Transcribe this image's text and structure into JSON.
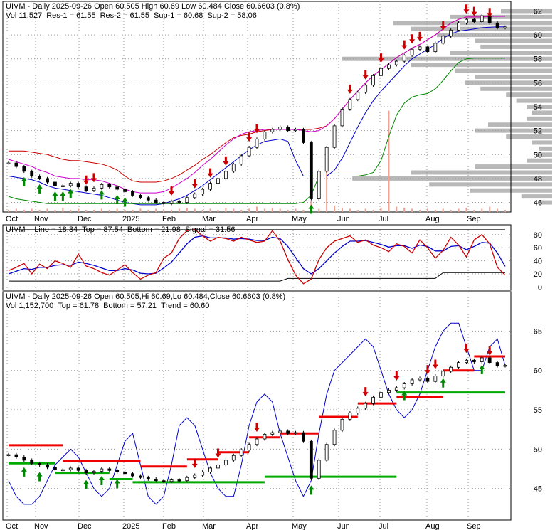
{
  "chart_data": [
    {
      "type": "candlestick",
      "header_line1": [
        {
          "text": "UIVM - Daily 2025-09-26 Open 60.505   High 60.69  Low 60.484   Close 60.6603 (0.8%)",
          "color": "#000000"
        }
      ],
      "header_line2": [
        {
          "text": "Vol 11,527",
          "color": "#000000"
        },
        {
          "text": "Res-1 = 61.55",
          "color": "#cc0000"
        },
        {
          "text": "Res-2 = 61.55",
          "color": "#cc0000"
        },
        {
          "text": "Sup-1 = 60.68",
          "color": "#0000cc"
        },
        {
          "text": "Sup-2 = 58.06",
          "color": "#008800"
        }
      ],
      "x_labels": [
        "Oct",
        "Nov",
        "Dec",
        "2025",
        "Feb",
        "Mar",
        "Apr",
        "May",
        "Jun",
        "Jul",
        "Aug",
        "Sep"
      ],
      "y_ticks": [
        46,
        48,
        50,
        52,
        54,
        56,
        58,
        60,
        62
      ],
      "ylim": [
        45.2,
        62.8
      ],
      "close": [
        49.3,
        49.0,
        48.6,
        48.2,
        48.0,
        47.7,
        47.4,
        47.4,
        47.6,
        47.3,
        47.0,
        47.2,
        47.5,
        47.3,
        47.1,
        46.9,
        46.6,
        46.4,
        46.2,
        46.0,
        45.9,
        46.1,
        46.0,
        46.4,
        46.7,
        47.1,
        47.6,
        48.0,
        48.6,
        49.2,
        49.9,
        50.6,
        51.3,
        51.9,
        52.1,
        52.3,
        52.0,
        52.1,
        51.0,
        46.3,
        48.6,
        50.6,
        52.4,
        53.8,
        54.6,
        55.2,
        55.8,
        56.6,
        57.2,
        57.5,
        57.8,
        58.3,
        58.8,
        59.0,
        58.6,
        59.3,
        59.9,
        60.4,
        61.0,
        61.3,
        61.1,
        61.6,
        61.0,
        60.6,
        60.66
      ],
      "res1": [
        50.3,
        50.3,
        50.3,
        50.2,
        50.1,
        50.0,
        49.8,
        49.6,
        49.5,
        49.5,
        49.4,
        49.3,
        49.2,
        49.0,
        48.7,
        48.2,
        47.8,
        47.7,
        47.7,
        47.7,
        47.8,
        48.0,
        48.3,
        48.7,
        49.1,
        49.6,
        50.0,
        50.5,
        51.0,
        51.4,
        51.6,
        51.7,
        51.9,
        52.0,
        52.1,
        52.1,
        52.1,
        52.1,
        52.1,
        52.1,
        52.2,
        52.4,
        53.0,
        53.8,
        54.6,
        55.3,
        56.0,
        56.6,
        57.1,
        57.6,
        58.1,
        58.5,
        58.9,
        59.2,
        59.6,
        60.0,
        60.5,
        61.0,
        61.3,
        61.5,
        61.5,
        61.5,
        61.55,
        61.55,
        61.55
      ],
      "res2": [
        49.6,
        49.4,
        49.2,
        49.0,
        48.7,
        48.5,
        48.2,
        48.1,
        48.0,
        48.0,
        47.9,
        47.9,
        47.8,
        47.6,
        47.4,
        47.1,
        46.9,
        46.8,
        46.8,
        46.8,
        46.9,
        47.2,
        47.6,
        48.0,
        48.5,
        49.1,
        49.6,
        50.2,
        50.8,
        51.3,
        51.7,
        51.9,
        52.0,
        52.1,
        52.1,
        52.1,
        52.1,
        52.1,
        52.0,
        51.9,
        52.0,
        52.4,
        53.0,
        53.8,
        54.6,
        55.3,
        56.0,
        56.6,
        57.1,
        57.6,
        58.1,
        58.5,
        58.9,
        59.2,
        59.6,
        60.0,
        60.5,
        61.0,
        61.3,
        61.5,
        61.5,
        61.5,
        61.55,
        61.55,
        61.55
      ],
      "sup1": [
        48.2,
        48.1,
        48.0,
        47.9,
        47.7,
        47.4,
        47.2,
        47.1,
        47.0,
        46.9,
        46.8,
        46.7,
        46.6,
        46.4,
        46.2,
        46.0,
        45.9,
        45.8,
        45.8,
        45.8,
        45.9,
        46.1,
        46.3,
        46.6,
        47.0,
        47.4,
        47.9,
        48.4,
        48.9,
        49.4,
        49.9,
        50.4,
        50.8,
        51.1,
        51.2,
        51.3,
        51.1,
        49.5,
        48.2,
        48.2,
        48.2,
        48.2,
        48.7,
        49.7,
        51.0,
        52.3,
        53.5,
        54.5,
        55.3,
        56.0,
        56.7,
        57.4,
        58.0,
        58.4,
        58.8,
        59.2,
        59.7,
        60.1,
        60.3,
        60.4,
        60.5,
        60.6,
        60.65,
        60.68,
        60.68
      ],
      "sup2": [
        46.5,
        46.3,
        46.2,
        46.1,
        46.0,
        45.9,
        45.9,
        45.9,
        45.9,
        45.9,
        45.9,
        45.9,
        45.9,
        45.9,
        45.9,
        45.9,
        45.9,
        45.9,
        45.9,
        45.9,
        45.9,
        45.9,
        45.9,
        45.9,
        45.9,
        45.9,
        45.9,
        45.9,
        45.9,
        45.9,
        45.9,
        45.9,
        45.9,
        45.9,
        45.9,
        45.9,
        45.9,
        45.9,
        46.0,
        46.6,
        48.2,
        48.2,
        48.2,
        48.2,
        48.2,
        48.2,
        48.3,
        48.5,
        49.5,
        51.5,
        53.3,
        54.3,
        54.8,
        55.0,
        55.1,
        55.5,
        56.2,
        57.0,
        57.7,
        58.0,
        58.06,
        58.06,
        58.06,
        58.06,
        58.06
      ],
      "volume_bars": [
        0.02,
        0.03,
        0.02,
        0.03,
        0.02,
        0.03,
        0.02,
        0.04,
        0.02,
        0.03,
        0.02,
        0.02,
        0.03,
        0.02,
        0.03,
        0.02,
        0.02,
        0.03,
        0.02,
        0.03,
        0.02,
        0.02,
        0.03,
        0.04,
        0.03,
        0.02,
        0.03,
        0.02,
        0.04,
        0.03,
        0.02,
        0.03,
        0.05,
        0.03,
        0.04,
        0.03,
        0.02,
        0.03,
        0.02,
        0.1,
        0.03,
        0.38,
        0.06,
        0.04,
        0.03,
        0.02,
        0.03,
        0.02,
        0.04,
        0.95,
        0.05,
        0.04,
        0.03,
        0.02,
        0.03,
        0.02,
        0.03,
        0.02,
        0.03,
        0.04,
        0.02,
        0.03,
        0.05,
        0.03,
        0.02
      ],
      "buy_arrows": [
        2,
        4,
        6,
        7,
        8,
        12,
        14,
        15,
        39
      ],
      "sell_arrows": [
        10,
        11,
        21,
        24,
        26,
        28,
        31,
        32,
        44,
        46,
        48,
        51,
        52,
        53,
        56,
        59,
        60,
        62
      ],
      "volume_profile": [
        [
          46,
          0.05
        ],
        [
          46.5,
          0.12
        ],
        [
          47,
          0.32
        ],
        [
          47.5,
          0.48
        ],
        [
          48,
          0.78
        ],
        [
          48.5,
          0.55
        ],
        [
          49,
          0.3
        ],
        [
          49.5,
          0.1
        ],
        [
          50,
          0.06
        ],
        [
          50.5,
          0.05
        ],
        [
          51,
          0.08
        ],
        [
          51.5,
          0.18
        ],
        [
          52,
          0.3
        ],
        [
          52.5,
          0.25
        ],
        [
          53,
          0.1
        ],
        [
          53.5,
          0.08
        ],
        [
          54,
          0.1
        ],
        [
          54.5,
          0.14
        ],
        [
          55,
          0.18
        ],
        [
          55.5,
          0.28
        ],
        [
          56,
          0.34
        ],
        [
          56.5,
          0.3
        ],
        [
          57,
          0.38
        ],
        [
          57.5,
          0.55
        ],
        [
          58,
          0.82
        ],
        [
          58.5,
          0.4
        ],
        [
          59,
          0.28
        ],
        [
          59.5,
          0.3
        ],
        [
          60,
          0.45
        ],
        [
          60.5,
          0.55
        ],
        [
          61,
          0.62
        ],
        [
          61.5,
          0.4
        ],
        [
          62,
          0.2
        ]
      ]
    },
    {
      "type": "oscillator",
      "header": [
        {
          "text": "UIVM - ",
          "color": "#000000"
        },
        {
          "text": "Line = 18.34",
          "color": "#cc0000"
        },
        {
          "text": "Top = 87.54",
          "color": "#000000"
        },
        {
          "text": "Bottom = 21.98",
          "color": "#000000"
        },
        {
          "text": "Signal = 31.56",
          "color": "#0000cc"
        }
      ],
      "y_ticks": [
        0,
        20,
        40,
        60,
        80
      ],
      "ylim": [
        -5,
        95
      ],
      "line": [
        25,
        30,
        36,
        20,
        35,
        28,
        40,
        36,
        30,
        50,
        32,
        28,
        22,
        18,
        26,
        34,
        22,
        12,
        18,
        22,
        44,
        52,
        74,
        86,
        88,
        78,
        70,
        76,
        74,
        70,
        76,
        72,
        68,
        70,
        86,
        70,
        42,
        18,
        5,
        12,
        42,
        60,
        70,
        74,
        78,
        68,
        72,
        64,
        60,
        54,
        66,
        62,
        52,
        72,
        60,
        44,
        56,
        76,
        64,
        46,
        72,
        80,
        66,
        30,
        18
      ],
      "signal": [
        20,
        24,
        28,
        27,
        30,
        30,
        33,
        34,
        33,
        38,
        36,
        33,
        29,
        25,
        25,
        28,
        26,
        21,
        20,
        21,
        29,
        38,
        52,
        66,
        76,
        78,
        75,
        75,
        75,
        73,
        74,
        73,
        71,
        71,
        76,
        74,
        62,
        45,
        28,
        20,
        28,
        40,
        52,
        62,
        70,
        70,
        71,
        68,
        65,
        61,
        63,
        63,
        59,
        64,
        62,
        55,
        55,
        62,
        63,
        57,
        62,
        68,
        67,
        52,
        31.56
      ],
      "top": [
        87.54,
        87.54,
        87.54,
        87.54,
        87.54,
        87.54,
        87.54,
        87.54,
        87.54,
        87.54,
        87.54,
        87.54,
        87.54,
        87.54,
        87.54,
        87.54,
        87.54,
        87.54,
        87.54,
        87.54,
        87.54,
        87.54,
        87.54,
        87.54,
        87.54,
        87.54,
        87.54,
        87.54,
        87.54,
        87.54,
        87.54,
        87.54,
        87.54,
        87.54,
        87.54,
        87.54,
        87.54,
        87.54,
        87.54,
        87.54,
        87.54,
        87.54,
        87.54,
        87.54,
        87.54,
        87.54,
        87.54,
        87.54,
        87.54,
        87.54,
        87.54,
        87.54,
        87.54,
        87.54,
        87.54,
        87.54,
        87.54,
        87.54,
        87.54,
        87.54,
        87.54,
        87.54,
        87.54,
        87.54,
        87.54
      ],
      "bottom": [
        9,
        9,
        9,
        9,
        9,
        9,
        9,
        9,
        9,
        9,
        9,
        9,
        9,
        9,
        9,
        9,
        9,
        9,
        9,
        9,
        9,
        9,
        9,
        9,
        9,
        9,
        9,
        9,
        9,
        9,
        9,
        9,
        9,
        9,
        9,
        9,
        13,
        13,
        13,
        13,
        13,
        13,
        13,
        13,
        13,
        13,
        13,
        13,
        13,
        13,
        13,
        13,
        13,
        13,
        13,
        13,
        21.98,
        21.98,
        21.98,
        21.98,
        21.98,
        21.98,
        21.98,
        21.98,
        21.98
      ]
    },
    {
      "type": "candlestick",
      "header_line1": [
        {
          "text": "UIVM - Daily 2025-09-26 Open 60.505,Hi 60.69,Lo 60.484,Close 60.6603 (0.8%)",
          "color": "#000000"
        }
      ],
      "header_line2": [
        {
          "text": "Vol 1,152,700",
          "color": "#000000"
        },
        {
          "text": "Top = 61.78",
          "color": "#cc0000"
        },
        {
          "text": "Bottom = 57.21",
          "color": "#008800"
        },
        {
          "text": "Trend = 60.60",
          "color": "#0000cc"
        }
      ],
      "x_labels": [
        "Oct",
        "Nov",
        "Dec",
        "2025",
        "Feb",
        "Mar",
        "Apr",
        "May",
        "Jun",
        "Jul",
        "Aug",
        "Sep"
      ],
      "y_ticks": [
        45,
        50,
        55,
        60,
        65
      ],
      "ylim": [
        41,
        70
      ],
      "close": [
        49.3,
        49.0,
        48.6,
        48.2,
        48.0,
        47.7,
        47.4,
        47.4,
        47.6,
        47.3,
        47.0,
        47.2,
        47.5,
        47.3,
        47.1,
        46.9,
        46.6,
        46.4,
        46.2,
        46.0,
        45.9,
        46.1,
        46.0,
        46.4,
        46.7,
        47.1,
        47.6,
        48.0,
        48.6,
        49.2,
        49.9,
        50.6,
        51.3,
        51.9,
        52.1,
        52.3,
        52.0,
        52.1,
        51.0,
        46.3,
        48.6,
        50.6,
        52.4,
        53.8,
        54.6,
        55.2,
        55.8,
        56.6,
        57.2,
        57.5,
        57.8,
        58.3,
        58.8,
        59.0,
        58.6,
        59.3,
        59.9,
        60.4,
        61.0,
        61.3,
        61.1,
        61.6,
        61.0,
        60.6,
        60.66
      ],
      "trend": [
        46,
        44,
        43,
        43,
        44,
        46,
        48,
        49,
        50,
        49,
        47,
        45,
        44,
        45,
        48,
        51,
        52,
        48,
        44,
        43,
        44,
        48,
        53,
        54,
        53,
        50,
        47,
        45,
        44,
        44,
        48,
        53,
        56,
        57,
        56,
        52,
        49,
        46,
        44,
        46,
        52,
        57,
        60,
        61,
        62,
        63,
        64,
        63,
        60,
        57,
        55,
        54,
        55,
        57,
        60,
        63,
        65,
        66,
        66,
        63,
        60,
        60,
        63,
        64,
        60.6
      ],
      "tops": [
        {
          "from": 0,
          "to": 7,
          "value": 50.5
        },
        {
          "from": 7,
          "to": 17,
          "value": 48.5
        },
        {
          "from": 17,
          "to": 23,
          "value": 47.8
        },
        {
          "from": 23,
          "to": 27,
          "value": 48.7
        },
        {
          "from": 27,
          "to": 31,
          "value": 49.6
        },
        {
          "from": 31,
          "to": 35,
          "value": 51.5
        },
        {
          "from": 35,
          "to": 40,
          "value": 52.0
        },
        {
          "from": 40,
          "to": 45,
          "value": 54.1
        },
        {
          "from": 45,
          "to": 50,
          "value": 55.8
        },
        {
          "from": 50,
          "to": 56,
          "value": 56.6
        },
        {
          "from": 56,
          "to": 60,
          "value": 60.0
        },
        {
          "from": 60,
          "to": 64,
          "value": 61.78
        }
      ],
      "bottoms": [
        {
          "from": 0,
          "to": 6,
          "value": 48.2
        },
        {
          "from": 6,
          "to": 13,
          "value": 47.0
        },
        {
          "from": 13,
          "to": 16,
          "value": 46.2
        },
        {
          "from": 16,
          "to": 33,
          "value": 45.8
        },
        {
          "from": 33,
          "to": 50,
          "value": 46.5
        },
        {
          "from": 50,
          "to": 58,
          "value": 57.21
        },
        {
          "from": 58,
          "to": 64,
          "value": 57.21
        }
      ],
      "buy_arrows": [
        2,
        4,
        10,
        12,
        14,
        39,
        51,
        56,
        61
      ],
      "sell_arrows": [
        24,
        27,
        32,
        46,
        50,
        54,
        55,
        59,
        62
      ]
    }
  ]
}
